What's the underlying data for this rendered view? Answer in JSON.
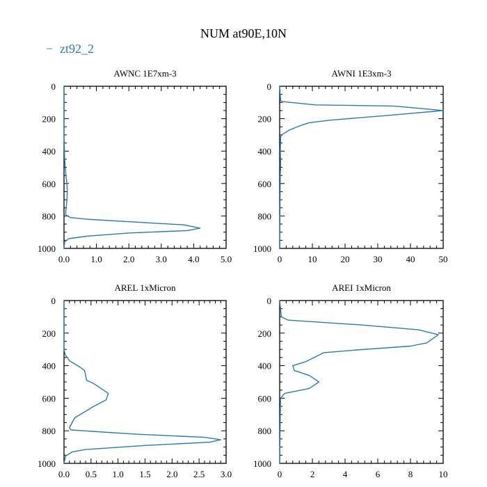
{
  "title": "NUM at90E,10N",
  "legend": {
    "label": "zt92_2",
    "marker": "−",
    "color": "#2a7ab6"
  },
  "chart_data": [
    {
      "type": "line",
      "title": "AWNC  1E7xm-3",
      "xlim": [
        0,
        5
      ],
      "ylim": [
        1000,
        0
      ],
      "x_ticks": [
        "0.0",
        "1.0",
        "2.0",
        "3.0",
        "4.0",
        "5.0"
      ],
      "y_ticks": [
        "0",
        "200",
        "400",
        "600",
        "800",
        "1000"
      ],
      "series": [
        {
          "color": "#2a7ab6",
          "x": [
            0.0,
            0.0,
            0.02,
            0.06,
            0.09,
            0.1,
            0.09,
            0.05,
            0.1,
            0.2,
            0.7,
            3.7,
            4.2,
            3.8,
            2.0,
            0.7,
            0.15,
            0.02,
            0.0
          ],
          "y": [
            0,
            300,
            450,
            550,
            600,
            650,
            700,
            790,
            800,
            810,
            820,
            855,
            875,
            890,
            905,
            925,
            940,
            960,
            1000
          ]
        }
      ]
    },
    {
      "type": "line",
      "title": "AWNI  1E3xm-3",
      "xlim": [
        0,
        50
      ],
      "ylim": [
        1000,
        0
      ],
      "x_ticks": [
        "0",
        "10",
        "20",
        "30",
        "40",
        "50"
      ],
      "y_ticks": [
        "0",
        "200",
        "400",
        "600",
        "800",
        "1000"
      ],
      "series": [
        {
          "color": "#2a7ab6",
          "x": [
            0,
            0.3,
            1,
            11,
            35,
            50,
            33,
            15,
            9,
            6,
            3,
            1,
            0.3,
            0.2,
            0.3,
            0.3,
            0.2,
            0
          ],
          "y": [
            0,
            90,
            95,
            115,
            122,
            150,
            180,
            210,
            225,
            245,
            270,
            295,
            310,
            400,
            480,
            510,
            530,
            1000
          ]
        }
      ]
    },
    {
      "type": "line",
      "title": "AREL  1xMicron",
      "xlim": [
        0,
        3
      ],
      "ylim": [
        1000,
        0
      ],
      "x_ticks": [
        "0.0",
        "0.5",
        "1.0",
        "1.5",
        "2.0",
        "2.5",
        "3.0"
      ],
      "y_ticks": [
        "0",
        "200",
        "400",
        "600",
        "800",
        "1000"
      ],
      "series": [
        {
          "color": "#2a7ab6",
          "x": [
            0,
            0,
            0.02,
            0.1,
            0.3,
            0.38,
            0.42,
            0.55,
            0.82,
            0.78,
            0.55,
            0.2,
            0.1,
            0.13,
            1.3,
            2.6,
            2.9,
            2.7,
            1.5,
            0.4,
            0.15,
            0.03,
            0
          ],
          "y": [
            0,
            300,
            330,
            370,
            410,
            430,
            490,
            510,
            570,
            610,
            650,
            720,
            780,
            795,
            820,
            840,
            855,
            870,
            890,
            915,
            930,
            955,
            1000
          ]
        }
      ]
    },
    {
      "type": "line",
      "title": "AREI  1xMicron",
      "xlim": [
        0,
        10
      ],
      "ylim": [
        1000,
        0
      ],
      "x_ticks": [
        "0",
        "2",
        "4",
        "6",
        "8",
        "10"
      ],
      "y_ticks": [
        "0",
        "200",
        "400",
        "600",
        "800",
        "1000"
      ],
      "series": [
        {
          "color": "#2a7ab6",
          "x": [
            0,
            0.1,
            0.5,
            5.0,
            8.5,
            9.7,
            9.0,
            8.0,
            4.5,
            2.7,
            2.0,
            1.6,
            0.8,
            0.9,
            1.8,
            2.4,
            1.8,
            0.3,
            0.05,
            0
          ],
          "y": [
            0,
            100,
            120,
            150,
            180,
            210,
            260,
            280,
            305,
            320,
            355,
            375,
            400,
            430,
            460,
            500,
            540,
            570,
            600,
            1000
          ]
        }
      ]
    }
  ]
}
